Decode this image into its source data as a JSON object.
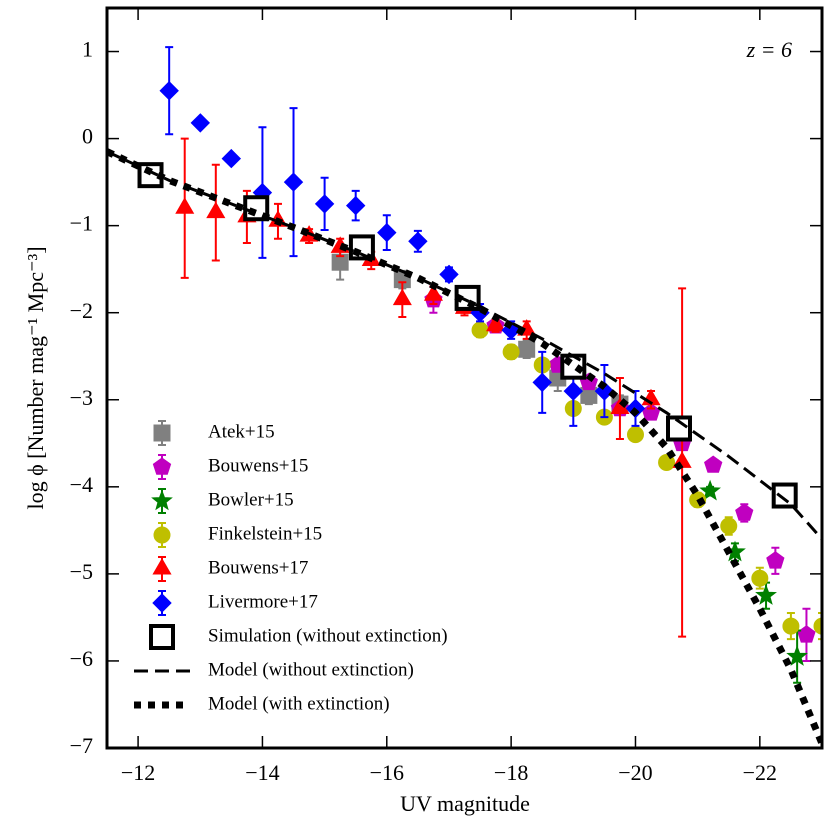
{
  "chart_data": {
    "type": "scatter",
    "xlabel": "UV magnitude",
    "ylabel": "log ϕ [Number mag⁻¹ Mpc⁻³]",
    "annotation": "z = 6",
    "xlim": [
      -11.5,
      -23.0
    ],
    "ylim": [
      -7,
      1.5
    ],
    "xticks": [
      {
        "value": -12,
        "label": "−12"
      },
      {
        "value": -14,
        "label": "−14"
      },
      {
        "value": -16,
        "label": "−16"
      },
      {
        "value": -18,
        "label": "−18"
      },
      {
        "value": -20,
        "label": "−20"
      },
      {
        "value": -22,
        "label": "−22"
      }
    ],
    "yticks": [
      1,
      0,
      {
        "value": -1,
        "label": "−1"
      },
      {
        "value": -2,
        "label": "−2"
      },
      {
        "value": -3,
        "label": "−3"
      },
      {
        "value": -4,
        "label": "−4"
      },
      {
        "value": -5,
        "label": "−5"
      },
      {
        "value": -6,
        "label": "−6"
      },
      {
        "value": -7,
        "label": "−7"
      }
    ],
    "legend": "lower left",
    "series": [
      {
        "name": "Atek+15",
        "color": "#808080",
        "marker": "square",
        "x": [
          -15.25,
          -16.25,
          -17.25,
          -18.25,
          -18.75,
          -19.25,
          -19.75
        ],
        "values": [
          -1.42,
          -1.62,
          -1.9,
          -2.42,
          -2.75,
          -2.95,
          -3.05
        ],
        "errors": [
          0.2,
          0.1,
          0.1,
          0.1,
          0.15,
          0.1,
          0.1
        ]
      },
      {
        "name": "Bouwens+15",
        "color": "#c000c0",
        "marker": "pentagon",
        "x": [
          -16.75,
          -17.75,
          -18.75,
          -19.25,
          -19.75,
          -20.25,
          -20.75,
          -21.25,
          -21.75,
          -22.25,
          -22.75
        ],
        "values": [
          -1.85,
          -2.15,
          -2.6,
          -2.8,
          -3.1,
          -3.15,
          -3.5,
          -3.75,
          -4.3,
          -4.85,
          -5.7
        ],
        "errors": [
          0.15,
          0.07,
          0.05,
          0.05,
          0.05,
          0.05,
          0.05,
          0.05,
          0.1,
          0.15,
          0.3
        ]
      },
      {
        "name": "Bowler+15",
        "color": "#008000",
        "marker": "star",
        "x": [
          -21.2,
          -21.6,
          -22.1,
          -22.6
        ],
        "values": [
          -4.05,
          -4.75,
          -5.25,
          -5.95
        ],
        "errors": [
          0.05,
          0.1,
          0.15,
          0.3
        ]
      },
      {
        "name": "Finkelstein+15",
        "color": "#bfbf00",
        "marker": "circle",
        "x": [
          -17.5,
          -18.0,
          -18.5,
          -19.0,
          -19.5,
          -20.0,
          -20.5,
          -21.0,
          -21.5,
          -22.0,
          -22.5,
          -23.0
        ],
        "values": [
          -2.2,
          -2.45,
          -2.6,
          -3.1,
          -3.2,
          -3.4,
          -3.72,
          -4.15,
          -4.45,
          -5.05,
          -5.6,
          -5.6
        ],
        "errors": [
          0.08,
          0.08,
          0.06,
          0.06,
          0.06,
          0.06,
          0.06,
          0.08,
          0.1,
          0.12,
          0.15,
          0.15
        ]
      },
      {
        "name": "Bouwens+17",
        "color": "#ff0000",
        "marker": "triangle",
        "x": [
          -12.75,
          -13.25,
          -13.75,
          -14.25,
          -14.75,
          -15.25,
          -15.75,
          -16.25,
          -16.75,
          -17.25,
          -17.75,
          -18.25,
          -19.75,
          -20.25,
          -20.75
        ],
        "values": [
          -0.8,
          -0.85,
          -0.9,
          -0.95,
          -1.12,
          -1.25,
          -1.4,
          -1.85,
          -1.8,
          -1.95,
          -2.15,
          -2.2,
          -3.1,
          -3.0,
          -3.72
        ],
        "errors": [
          0.8,
          0.55,
          0.3,
          0.2,
          0.08,
          0.1,
          0.1,
          0.2,
          0.1,
          0.08,
          0.07,
          0.1,
          0.35,
          0.1,
          2.0
        ]
      },
      {
        "name": "Livermore+17",
        "color": "#0000ff",
        "marker": "diamond",
        "x": [
          -12.5,
          -13.0,
          -13.5,
          -14.0,
          -14.5,
          -15.0,
          -15.5,
          -16.0,
          -16.5,
          -17.0,
          -17.5,
          -18.0,
          -18.5,
          -19.0,
          -19.5,
          -20.0
        ],
        "values": [
          0.55,
          0.18,
          -0.23,
          -0.62,
          -0.5,
          -0.75,
          -0.77,
          -1.08,
          -1.18,
          -1.56,
          -2.0,
          -2.2,
          -2.8,
          -2.9,
          -2.9,
          -3.1
        ],
        "errors": [
          0.5,
          null,
          null,
          0.75,
          0.85,
          0.3,
          0.17,
          0.2,
          0.12,
          0.08,
          0.1,
          0.1,
          0.35,
          0.4,
          0.3,
          0.2
        ]
      },
      {
        "name": "Simulation (without extinction)",
        "color": "#000000",
        "marker": "open-square",
        "x": [
          -12.2,
          -13.9,
          -15.6,
          -17.3,
          -19.0,
          -20.7,
          -22.4
        ],
        "values": [
          -0.42,
          -0.8,
          -1.25,
          -1.83,
          -2.62,
          -3.33,
          -4.1
        ]
      },
      {
        "name": "Model (without extinction)",
        "color": "#000000",
        "line": "dashed",
        "x": [
          -11.5,
          -12.5,
          -13.5,
          -14.5,
          -15.5,
          -16.5,
          -17.5,
          -18.5,
          -19.5,
          -20.5,
          -21.5,
          -22.5,
          -23.0
        ],
        "values": [
          -0.15,
          -0.48,
          -0.75,
          -1.02,
          -1.3,
          -1.6,
          -1.93,
          -2.3,
          -2.7,
          -3.15,
          -3.65,
          -4.2,
          -4.6
        ]
      },
      {
        "name": "Model (with extinction)",
        "color": "#000000",
        "line": "dotted",
        "x": [
          -11.5,
          -12.5,
          -13.5,
          -14.5,
          -15.5,
          -16.5,
          -17.5,
          -18.5,
          -19.5,
          -20.0,
          -20.5,
          -21.0,
          -21.5,
          -22.0,
          -22.5,
          -23.0
        ],
        "values": [
          -0.15,
          -0.48,
          -0.75,
          -1.02,
          -1.3,
          -1.6,
          -1.95,
          -2.35,
          -2.85,
          -3.15,
          -3.55,
          -4.1,
          -4.75,
          -5.4,
          -6.1,
          -6.95
        ]
      }
    ]
  }
}
